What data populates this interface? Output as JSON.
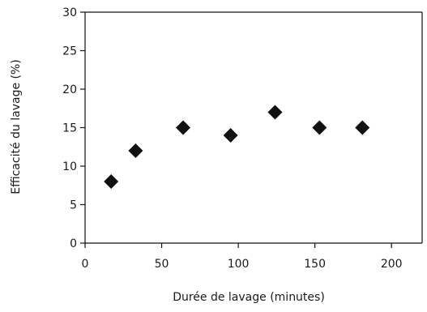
{
  "chart_data": {
    "type": "scatter",
    "title": "",
    "xlabel": "Durée de lavage (minutes)",
    "ylabel": "Efficacité du lavage (%)",
    "xlim": [
      0,
      220
    ],
    "ylim": [
      0,
      30
    ],
    "xticks": [
      0,
      50,
      100,
      150,
      200
    ],
    "yticks": [
      0,
      5,
      10,
      15,
      20,
      25,
      30
    ],
    "grid": false,
    "marker": "diamond",
    "marker_color": "#111111",
    "series": [
      {
        "x": [
          17,
          33,
          64,
          95,
          124,
          153,
          181
        ],
        "y": [
          8,
          12,
          15,
          14,
          17,
          15,
          15
        ]
      }
    ]
  }
}
